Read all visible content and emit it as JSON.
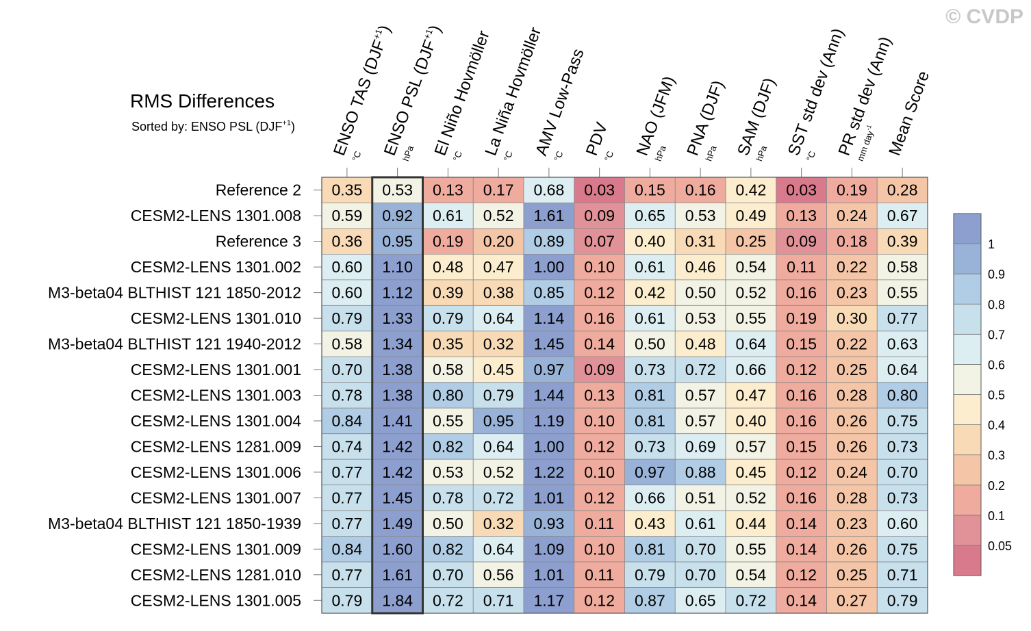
{
  "watermark": "© CVDP",
  "chart_data": {
    "type": "heatmap",
    "title": "RMS Differences",
    "subtitle": {
      "prefix": "Sorted by: ENSO PSL (DJF",
      "sup": "+1",
      "suffix": ")"
    },
    "highlight_column": 1,
    "columns": [
      {
        "label": "ENSO TAS (DJF",
        "sup": "+1",
        "label_end": ")",
        "unit": "°C"
      },
      {
        "label": "ENSO PSL (DJF",
        "sup": "+1",
        "label_end": ")",
        "unit": "hPa"
      },
      {
        "label": "El Niño Hovmöller",
        "unit": "°C"
      },
      {
        "label": "La Niña Hovmöller",
        "unit": "°C"
      },
      {
        "label": "AMV Low-Pass",
        "unit": "°C"
      },
      {
        "label": "PDV",
        "unit": "°C"
      },
      {
        "label": "NAO (JFM)",
        "unit": "hPa"
      },
      {
        "label": "PNA (DJF)",
        "unit": "hPa"
      },
      {
        "label": "SAM (DJF)",
        "unit": "hPa"
      },
      {
        "label": "SST std dev (Ann)",
        "unit": "°C"
      },
      {
        "label": "PR std dev (Ann)",
        "unit": "mm day",
        "unit_sup": "-1"
      },
      {
        "label": "Mean Score",
        "unit": ""
      }
    ],
    "rows": [
      {
        "label": "Reference 2",
        "values": [
          0.35,
          0.53,
          0.13,
          0.17,
          0.68,
          0.03,
          0.15,
          0.16,
          0.42,
          0.03,
          0.19,
          0.28
        ]
      },
      {
        "label": "CESM2-LENS 1301.008",
        "values": [
          0.59,
          0.92,
          0.61,
          0.52,
          1.61,
          0.09,
          0.65,
          0.53,
          0.49,
          0.13,
          0.24,
          0.67
        ]
      },
      {
        "label": "Reference 3",
        "values": [
          0.36,
          0.95,
          0.19,
          0.2,
          0.89,
          0.07,
          0.4,
          0.31,
          0.25,
          0.09,
          0.18,
          0.39
        ]
      },
      {
        "label": "CESM2-LENS 1301.002",
        "values": [
          0.6,
          1.1,
          0.48,
          0.47,
          1.0,
          0.1,
          0.61,
          0.46,
          0.54,
          0.11,
          0.22,
          0.58
        ]
      },
      {
        "label": "M3-beta04 BLTHIST 121 1850-2012",
        "values": [
          0.6,
          1.12,
          0.39,
          0.38,
          0.85,
          0.12,
          0.42,
          0.5,
          0.52,
          0.16,
          0.23,
          0.55
        ]
      },
      {
        "label": "CESM2-LENS 1301.010",
        "values": [
          0.79,
          1.33,
          0.79,
          0.64,
          1.14,
          0.16,
          0.61,
          0.53,
          0.55,
          0.19,
          0.3,
          0.77
        ]
      },
      {
        "label": "M3-beta04 BLTHIST 121 1940-2012",
        "values": [
          0.58,
          1.34,
          0.35,
          0.32,
          1.45,
          0.14,
          0.5,
          0.48,
          0.64,
          0.15,
          0.22,
          0.63
        ]
      },
      {
        "label": "CESM2-LENS 1301.001",
        "values": [
          0.7,
          1.38,
          0.58,
          0.45,
          0.97,
          0.09,
          0.73,
          0.72,
          0.66,
          0.12,
          0.25,
          0.64
        ]
      },
      {
        "label": "CESM2-LENS 1301.003",
        "values": [
          0.78,
          1.38,
          0.8,
          0.79,
          1.44,
          0.13,
          0.81,
          0.57,
          0.47,
          0.16,
          0.28,
          0.8
        ]
      },
      {
        "label": "CESM2-LENS 1301.004",
        "values": [
          0.84,
          1.41,
          0.55,
          0.95,
          1.19,
          0.1,
          0.81,
          0.57,
          0.4,
          0.16,
          0.26,
          0.75
        ]
      },
      {
        "label": "CESM2-LENS 1281.009",
        "values": [
          0.74,
          1.42,
          0.82,
          0.64,
          1.0,
          0.12,
          0.73,
          0.69,
          0.57,
          0.15,
          0.26,
          0.73
        ]
      },
      {
        "label": "CESM2-LENS 1301.006",
        "values": [
          0.77,
          1.42,
          0.53,
          0.52,
          1.22,
          0.1,
          0.97,
          0.88,
          0.45,
          0.12,
          0.24,
          0.7
        ]
      },
      {
        "label": "CESM2-LENS 1301.007",
        "values": [
          0.77,
          1.45,
          0.78,
          0.72,
          1.01,
          0.12,
          0.66,
          0.51,
          0.52,
          0.16,
          0.28,
          0.73
        ]
      },
      {
        "label": "M3-beta04 BLTHIST 121 1850-1939",
        "values": [
          0.77,
          1.49,
          0.5,
          0.32,
          0.93,
          0.11,
          0.43,
          0.61,
          0.44,
          0.14,
          0.23,
          0.6
        ]
      },
      {
        "label": "CESM2-LENS 1301.009",
        "values": [
          0.84,
          1.6,
          0.82,
          0.64,
          1.09,
          0.1,
          0.81,
          0.7,
          0.55,
          0.14,
          0.26,
          0.75
        ]
      },
      {
        "label": "CESM2-LENS 1281.010",
        "values": [
          0.77,
          1.61,
          0.7,
          0.56,
          1.01,
          0.11,
          0.79,
          0.7,
          0.54,
          0.12,
          0.25,
          0.71
        ]
      },
      {
        "label": "CESM2-LENS 1301.005",
        "values": [
          0.79,
          1.84,
          0.72,
          0.71,
          1.17,
          0.12,
          0.87,
          0.65,
          0.72,
          0.14,
          0.27,
          0.79
        ]
      }
    ],
    "colorbar": {
      "levels": [
        "0.05",
        "0.1",
        "0.2",
        "0.3",
        "0.4",
        "0.5",
        "0.6",
        "0.7",
        "0.8",
        "0.9",
        "1"
      ],
      "thresholds": [
        0.05,
        0.1,
        0.2,
        0.3,
        0.4,
        0.5,
        0.6,
        0.7,
        0.8,
        0.9,
        1.0
      ],
      "colors": [
        "#d87a8c",
        "#e19298",
        "#eeab9e",
        "#f4c5a6",
        "#f8dbb6",
        "#fbedcd",
        "#f2f2e5",
        "#ddeef2",
        "#c7e0ec",
        "#b0cde5",
        "#99b3d8",
        "#8c9fcf"
      ]
    }
  }
}
